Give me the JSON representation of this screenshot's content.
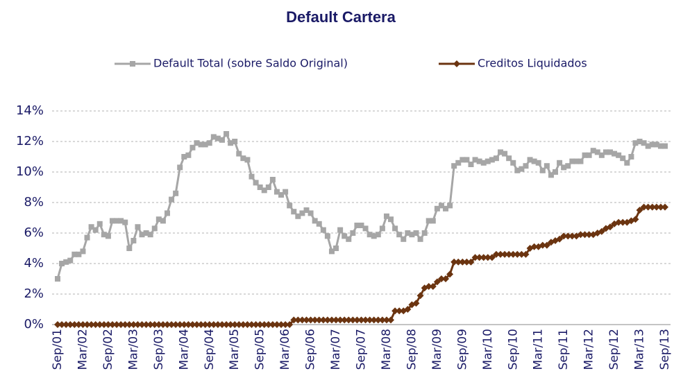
{
  "chart_data": {
    "type": "line",
    "title": "Default Cartera",
    "categories": [
      "Sep/01",
      null,
      null,
      null,
      null,
      null,
      "Mar/02",
      null,
      null,
      null,
      null,
      null,
      "Sep/02",
      null,
      null,
      null,
      null,
      null,
      "Mar/03",
      null,
      null,
      null,
      null,
      null,
      "Sep/03",
      null,
      null,
      null,
      null,
      null,
      "Mar/04",
      null,
      null,
      null,
      null,
      null,
      "Sep/04",
      null,
      null,
      null,
      null,
      null,
      "Mar/05",
      null,
      null,
      null,
      null,
      null,
      "Sep/05",
      null,
      null,
      null,
      null,
      null,
      "Mar/06",
      null,
      null,
      null,
      null,
      null,
      "Sep/06",
      null,
      null,
      null,
      null,
      null,
      "Mar/07",
      null,
      null,
      null,
      null,
      null,
      "Sep/07",
      null,
      null,
      null,
      null,
      null,
      "Mar/08",
      null,
      null,
      null,
      null,
      null,
      "Sep/08",
      null,
      null,
      null,
      null,
      null,
      "Mar/09",
      null,
      null,
      null,
      null,
      null,
      "Sep/09",
      null,
      null,
      null,
      null,
      null,
      "Mar/10",
      null,
      null,
      null,
      null,
      null,
      "Sep/10",
      null,
      null,
      null,
      null,
      null,
      "Mar/11",
      null,
      null,
      null,
      null,
      null,
      "Sep/11",
      null,
      null,
      null,
      null,
      null,
      "Mar/12",
      null,
      null,
      null,
      null,
      null,
      "Sep/12",
      null,
      null,
      null,
      null,
      null,
      "Mar/13",
      null,
      null,
      null,
      null,
      null,
      "Sep/13"
    ],
    "series": [
      {
        "name": "Default Total (sobre Saldo Original)",
        "color": "#a6a6a6",
        "marker": "square",
        "values": [
          3.0,
          4.0,
          4.1,
          4.2,
          4.6,
          4.6,
          4.8,
          5.7,
          6.4,
          6.2,
          6.6,
          5.9,
          5.8,
          6.8,
          6.8,
          6.8,
          6.7,
          5.0,
          5.5,
          6.4,
          5.9,
          6.0,
          5.9,
          6.3,
          6.9,
          6.8,
          7.3,
          8.2,
          8.6,
          10.3,
          11.0,
          11.1,
          11.6,
          11.9,
          11.8,
          11.8,
          11.9,
          12.3,
          12.2,
          12.1,
          12.5,
          11.9,
          12.0,
          11.2,
          10.9,
          10.8,
          9.7,
          9.3,
          9.0,
          8.8,
          9.0,
          9.5,
          8.7,
          8.5,
          8.7,
          7.8,
          7.4,
          7.1,
          7.3,
          7.5,
          7.3,
          6.8,
          6.6,
          6.2,
          5.8,
          4.8,
          5.0,
          6.2,
          5.8,
          5.6,
          6.0,
          6.5,
          6.5,
          6.3,
          5.9,
          5.8,
          5.9,
          6.3,
          7.1,
          6.9,
          6.3,
          5.9,
          5.6,
          6.0,
          5.9,
          6.0,
          5.6,
          6.0,
          6.8,
          6.8,
          7.6,
          7.8,
          7.6,
          7.8,
          10.4,
          10.6,
          10.8,
          10.8,
          10.5,
          10.8,
          10.7,
          10.6,
          10.7,
          10.8,
          10.9,
          11.3,
          11.2,
          10.9,
          10.6,
          10.1,
          10.2,
          10.4,
          10.8,
          10.7,
          10.6,
          10.1,
          10.4,
          9.8,
          10.0,
          10.6,
          10.3,
          10.4,
          10.7,
          10.7,
          10.7,
          11.1,
          11.1,
          11.4,
          11.3,
          11.1,
          11.3,
          11.3,
          11.2,
          11.1,
          10.9,
          10.6,
          11.0,
          11.9,
          12.0,
          11.9,
          11.7,
          11.8,
          11.8,
          11.7,
          11.7
        ]
      },
      {
        "name": "Creditos Liquidados",
        "color": "#6b3410",
        "marker": "diamond",
        "values": [
          0,
          0,
          0,
          0,
          0,
          0,
          0,
          0,
          0,
          0,
          0,
          0,
          0,
          0,
          0,
          0,
          0,
          0,
          0,
          0,
          0,
          0,
          0,
          0,
          0,
          0,
          0,
          0,
          0,
          0,
          0,
          0,
          0,
          0,
          0,
          0,
          0,
          0,
          0,
          0,
          0,
          0,
          0,
          0,
          0,
          0,
          0,
          0,
          0,
          0,
          0,
          0,
          0,
          0,
          0,
          0,
          0.3,
          0.3,
          0.3,
          0.3,
          0.3,
          0.3,
          0.3,
          0.3,
          0.3,
          0.3,
          0.3,
          0.3,
          0.3,
          0.3,
          0.3,
          0.3,
          0.3,
          0.3,
          0.3,
          0.3,
          0.3,
          0.3,
          0.3,
          0.3,
          0.9,
          0.9,
          0.9,
          1.0,
          1.3,
          1.4,
          1.9,
          2.4,
          2.5,
          2.5,
          2.8,
          3.0,
          3.0,
          3.3,
          4.1,
          4.1,
          4.1,
          4.1,
          4.1,
          4.4,
          4.4,
          4.4,
          4.4,
          4.4,
          4.6,
          4.6,
          4.6,
          4.6,
          4.6,
          4.6,
          4.6,
          4.6,
          5.0,
          5.1,
          5.1,
          5.2,
          5.2,
          5.4,
          5.5,
          5.6,
          5.8,
          5.8,
          5.8,
          5.8,
          5.9,
          5.9,
          5.9,
          5.9,
          6.0,
          6.1,
          6.3,
          6.4,
          6.6,
          6.7,
          6.7,
          6.7,
          6.8,
          6.9,
          7.5,
          7.7,
          7.7,
          7.7,
          7.7,
          7.7,
          7.7
        ]
      }
    ],
    "ylim": [
      0,
      14
    ],
    "yticks": [
      {
        "value": 0,
        "label": "0%"
      },
      {
        "value": 2,
        "label": "2%"
      },
      {
        "value": 4,
        "label": "4%"
      },
      {
        "value": 6,
        "label": "6%"
      },
      {
        "value": 8,
        "label": "8%"
      },
      {
        "value": 10,
        "label": "10%"
      },
      {
        "value": 12,
        "label": "12%"
      },
      {
        "value": 14,
        "label": "14%"
      }
    ],
    "grid": true,
    "legend": "top"
  }
}
